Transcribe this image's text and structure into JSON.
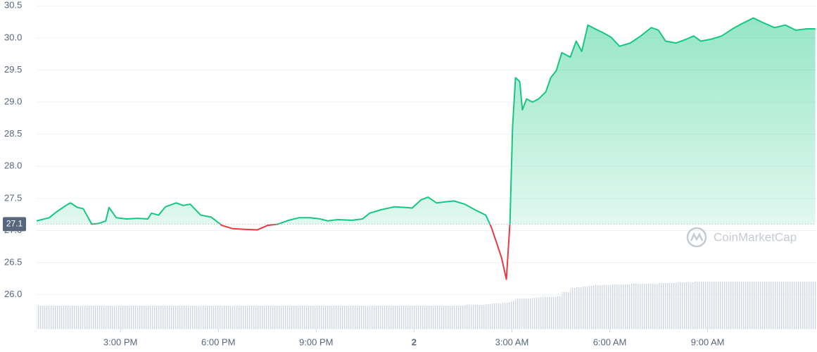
{
  "chart_data": {
    "type": "line",
    "x": [
      12.43,
      12.82,
      13.04,
      13.36,
      13.47,
      13.68,
      13.86,
      14.12,
      14.33,
      14.55,
      14.65,
      14.87,
      15.19,
      15.52,
      15.84,
      15.95,
      16.17,
      16.38,
      16.71,
      16.92,
      17.14,
      17.46,
      17.78,
      18.11,
      18.43,
      18.76,
      19.19,
      19.51,
      19.83,
      20.16,
      20.48,
      20.81,
      21.13,
      21.35,
      21.67,
      22.1,
      22.42,
      22.64,
      22.96,
      23.4,
      23.72,
      23.94,
      24.22,
      24.43,
      24.69,
      25.02,
      25.23,
      25.55,
      25.88,
      26.2,
      26.37,
      26.53,
      26.68,
      26.83,
      26.94,
      27.02,
      27.11,
      27.24,
      27.32,
      27.45,
      27.63,
      27.82,
      28.04,
      28.19,
      28.36,
      28.53,
      28.79,
      28.97,
      29.14,
      29.33,
      29.55,
      29.76,
      30.04,
      30.3,
      30.63,
      30.95,
      31.27,
      31.49,
      31.71,
      32.03,
      32.35,
      32.57,
      32.79,
      33.11,
      33.43,
      33.76,
      33.97,
      34.4,
      34.73,
      35.05,
      35.38,
      35.7,
      36.02,
      36.3
    ],
    "series": [
      {
        "name": "Price",
        "color": "#16c784",
        "values": [
          27.15,
          27.2,
          27.29,
          27.4,
          27.43,
          27.36,
          27.34,
          27.1,
          27.11,
          27.15,
          27.36,
          27.2,
          27.18,
          27.19,
          27.18,
          27.27,
          27.24,
          27.37,
          27.43,
          27.39,
          27.41,
          27.24,
          27.21,
          27.08,
          27.03,
          27.02,
          27.01,
          27.08,
          27.1,
          27.16,
          27.2,
          27.2,
          27.18,
          27.15,
          27.17,
          27.16,
          27.18,
          27.27,
          27.32,
          27.37,
          27.36,
          27.35,
          27.48,
          27.52,
          27.43,
          27.45,
          27.46,
          27.41,
          27.32,
          27.24,
          27.05,
          26.81,
          26.58,
          26.24,
          27.12,
          28.61,
          29.38,
          29.32,
          28.88,
          29.05,
          29.0,
          29.05,
          29.16,
          29.38,
          29.49,
          29.77,
          29.7,
          29.95,
          29.79,
          30.2,
          30.14,
          30.09,
          30.01,
          29.87,
          29.92,
          30.03,
          30.16,
          30.12,
          29.95,
          29.92,
          29.98,
          30.03,
          29.95,
          29.98,
          30.03,
          30.14,
          30.2,
          30.31,
          30.23,
          30.16,
          30.2,
          30.12,
          30.14,
          30.14
        ]
      },
      {
        "name": "Volume",
        "color": "#cfd6e4",
        "axis": "y2",
        "values": [
          33,
          33,
          33,
          33,
          33,
          33,
          33,
          33,
          33,
          33,
          33,
          33,
          33,
          33,
          33,
          33,
          33,
          33,
          33,
          33,
          33,
          33,
          33,
          33,
          33,
          33,
          33,
          33,
          33,
          33,
          33,
          33,
          33,
          33,
          33,
          33,
          33,
          33,
          33,
          33,
          33,
          33,
          33,
          33,
          33,
          33,
          33,
          34,
          34,
          35,
          36,
          36,
          37,
          37,
          38,
          40,
          43,
          43,
          43,
          43,
          44,
          45,
          45,
          45,
          46,
          52,
          58,
          59,
          60,
          61,
          62,
          62,
          63,
          63,
          64,
          64,
          64,
          65,
          65,
          66,
          66,
          67,
          67,
          67,
          67,
          67,
          67,
          67,
          67,
          67,
          67,
          67,
          67,
          67
        ]
      }
    ],
    "down_color": "#ea3943",
    "baseline": 27.1,
    "xlim": [
      12.43,
      36.33
    ],
    "xticks": [
      {
        "value": 15,
        "label": "3:00 PM"
      },
      {
        "value": 18,
        "label": "6:00 PM"
      },
      {
        "value": 21,
        "label": "9:00 PM"
      },
      {
        "value": 24,
        "label": "2"
      },
      {
        "value": 27,
        "label": "3:00 AM"
      },
      {
        "value": 30,
        "label": "6:00 AM"
      },
      {
        "value": 33,
        "label": "9:00 AM"
      }
    ],
    "ylim": [
      25.47,
      30.59
    ],
    "yticks": [
      {
        "value": 26,
        "label": "26.0"
      },
      {
        "value": 26.5,
        "label": "26.5"
      },
      {
        "value": 27,
        "label": "27.0"
      },
      {
        "value": 27.5,
        "label": "27.5"
      },
      {
        "value": 28,
        "label": "28.0"
      },
      {
        "value": 28.5,
        "label": "28.5"
      },
      {
        "value": 29,
        "label": "29.0"
      },
      {
        "value": 29.5,
        "label": "29.5"
      },
      {
        "value": 30,
        "label": "30.0"
      },
      {
        "value": 30.5,
        "label": "30.5"
      }
    ],
    "y2lim": [
      0,
      467
    ],
    "grid": true,
    "watermark": "CoinMarketCap"
  }
}
